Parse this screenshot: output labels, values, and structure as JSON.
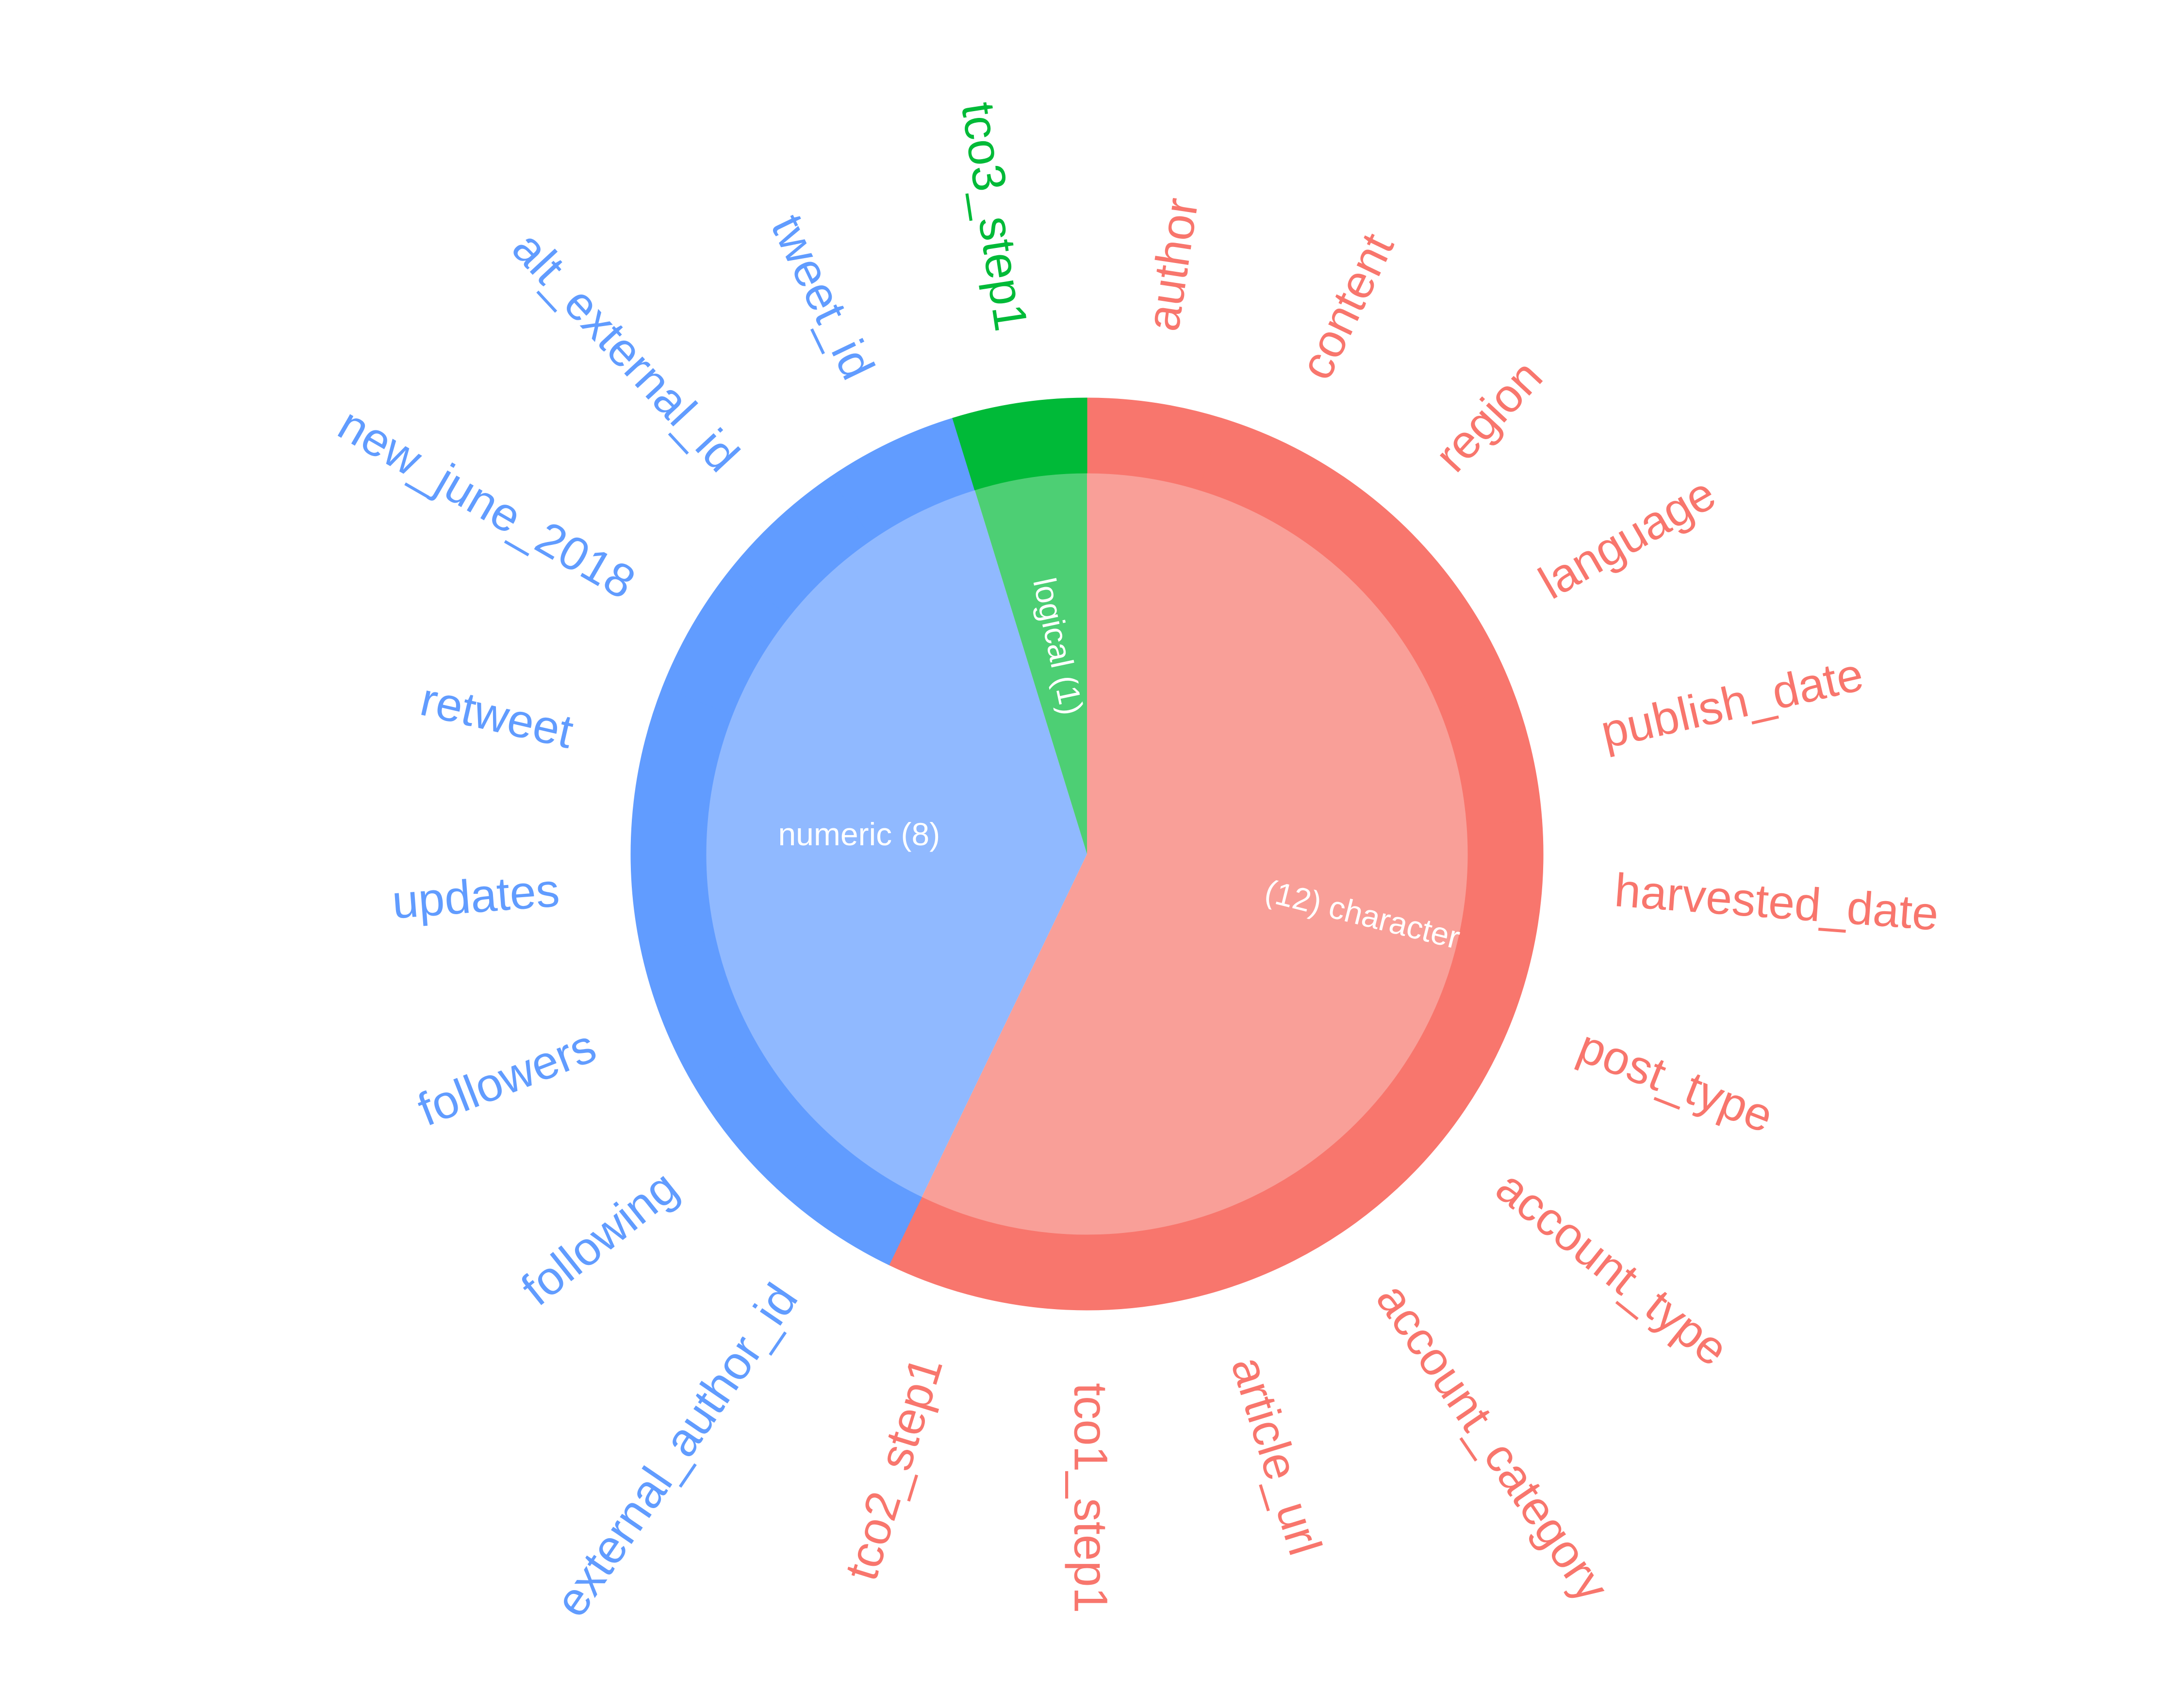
{
  "chart_data": {
    "type": "sunburst",
    "center": null,
    "colors": {
      "character_outer": "#F8766D",
      "character_inner": "#F99F98",
      "numeric_outer": "#619CFF",
      "numeric_inner": "#90B9FF",
      "logical_outer": "#00BA38",
      "logical_inner": "#4DCF74",
      "inner_text": "#FFFFFF"
    },
    "groups": [
      {
        "key": "character",
        "label": "(12) character",
        "count": 12,
        "columns": [
          "author",
          "content",
          "region",
          "language",
          "publish_date",
          "harvested_date",
          "post_type",
          "account_type",
          "account_category",
          "article_url",
          "tco1_step1",
          "tco2_step1"
        ]
      },
      {
        "key": "numeric",
        "label": "numeric (8)",
        "count": 8,
        "columns": [
          "external_author_id",
          "following",
          "followers",
          "updates",
          "retweet",
          "new_june_2018",
          "alt_external_id",
          "tweet_id"
        ]
      },
      {
        "key": "logical",
        "label": "logical (1)",
        "count": 1,
        "columns": [
          "tco3_step1"
        ]
      }
    ]
  }
}
